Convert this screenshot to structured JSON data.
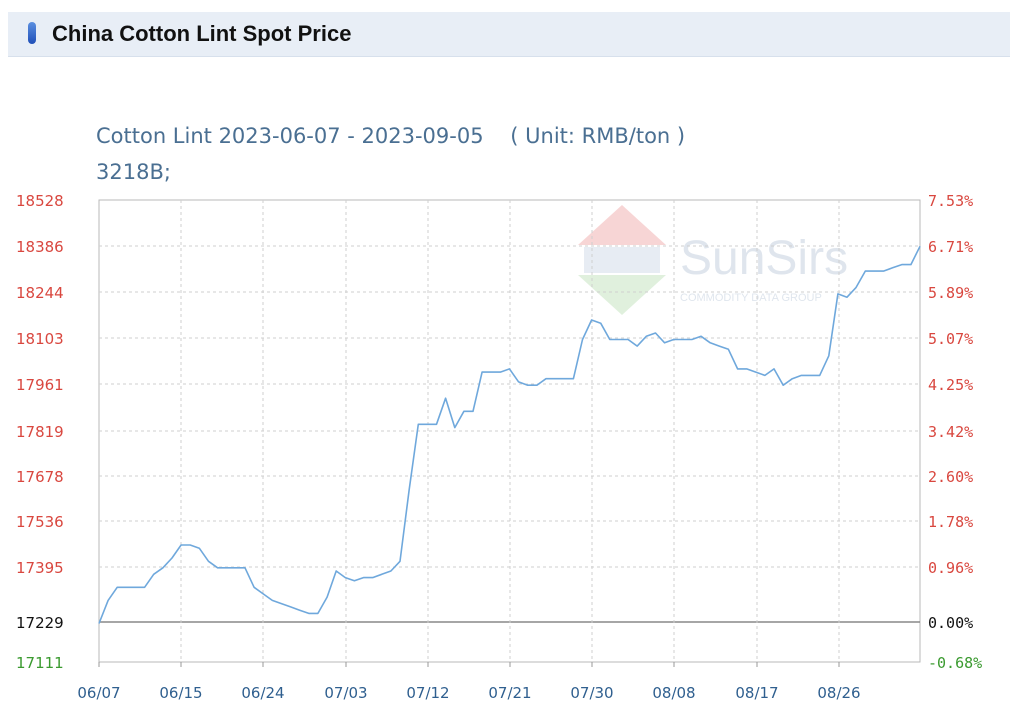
{
  "header": {
    "title": "China Cotton Lint Spot Price"
  },
  "chart_title": {
    "line1": "Cotton Lint 2023-06-07 - 2023-09-05    ( Unit: RMB/ton )",
    "line2": "3218B;"
  },
  "watermark": {
    "brand": "SunSirs",
    "tagline": "COMMODITY DATA GROUP"
  },
  "chart_data": {
    "type": "line",
    "title": "Cotton Lint 2023-06-07 - 2023-09-05",
    "unit": "RMB/ton",
    "series": [
      {
        "color": "#6fa8dc",
        "x": [
          "06/07",
          "06/08",
          "06/09",
          "06/10",
          "06/11",
          "06/12",
          "06/13",
          "06/14",
          "06/15",
          "06/16",
          "06/17",
          "06/18",
          "06/19",
          "06/20",
          "06/21",
          "06/22",
          "06/23",
          "06/24",
          "06/25",
          "06/26",
          "06/27",
          "06/28",
          "06/29",
          "06/30",
          "07/01",
          "07/02",
          "07/03",
          "07/04",
          "07/05",
          "07/06",
          "07/07",
          "07/08",
          "07/09",
          "07/10",
          "07/11",
          "07/12",
          "07/13",
          "07/14",
          "07/15",
          "07/16",
          "07/17",
          "07/18",
          "07/19",
          "07/20",
          "07/21",
          "07/22",
          "07/23",
          "07/24",
          "07/25",
          "07/26",
          "07/27",
          "07/28",
          "07/29",
          "07/30",
          "07/31",
          "08/01",
          "08/02",
          "08/03",
          "08/04",
          "08/05",
          "08/06",
          "08/07",
          "08/08",
          "08/09",
          "08/10",
          "08/11",
          "08/12",
          "08/13",
          "08/14",
          "08/15",
          "08/16",
          "08/17",
          "08/18",
          "08/19",
          "08/20",
          "08/21",
          "08/22",
          "08/23",
          "08/24",
          "08/25",
          "08/26",
          "08/27",
          "08/28",
          "08/29",
          "08/30",
          "08/31",
          "09/01",
          "09/02",
          "09/03",
          "09/04",
          "09/05"
        ],
        "values": [
          17229,
          17300,
          17340,
          17340,
          17340,
          17340,
          17380,
          17400,
          17430,
          17470,
          17470,
          17460,
          17420,
          17400,
          17400,
          17400,
          17400,
          17340,
          17320,
          17300,
          17290,
          17280,
          17270,
          17260,
          17260,
          17310,
          17390,
          17370,
          17360,
          17370,
          17370,
          17380,
          17390,
          17420,
          17640,
          17840,
          17840,
          17840,
          17920,
          17830,
          17880,
          17880,
          18000,
          18000,
          18000,
          18010,
          17970,
          17960,
          17960,
          17980,
          17980,
          17980,
          17980,
          18100,
          18160,
          18150,
          18100,
          18100,
          18100,
          18080,
          18110,
          18120,
          18090,
          18100,
          18100,
          18100,
          18110,
          18090,
          18080,
          18070,
          18010,
          18010,
          18000,
          17990,
          18010,
          17960,
          17980,
          17990,
          17990,
          17990,
          18050,
          18240,
          18230,
          18260,
          18310,
          18310,
          18310,
          18320,
          18330,
          18330,
          18386
        ]
      }
    ],
    "y_ticks_left": [
      "18528",
      "18386",
      "18244",
      "18103",
      "17961",
      "17819",
      "17678",
      "17536",
      "17395",
      "17229",
      "17111"
    ],
    "y_ticks_right": [
      "7.53%",
      "6.71%",
      "5.89%",
      "5.07%",
      "4.25%",
      "3.42%",
      "2.60%",
      "1.78%",
      "0.96%",
      "0.00%",
      "-0.68%"
    ],
    "x_ticks": [
      "06/07",
      "06/15",
      "06/24",
      "07/03",
      "07/12",
      "07/21",
      "07/30",
      "08/08",
      "08/17",
      "08/26"
    ],
    "ylim": [
      17111,
      18528
    ],
    "baseline": 17229,
    "grid": true
  }
}
